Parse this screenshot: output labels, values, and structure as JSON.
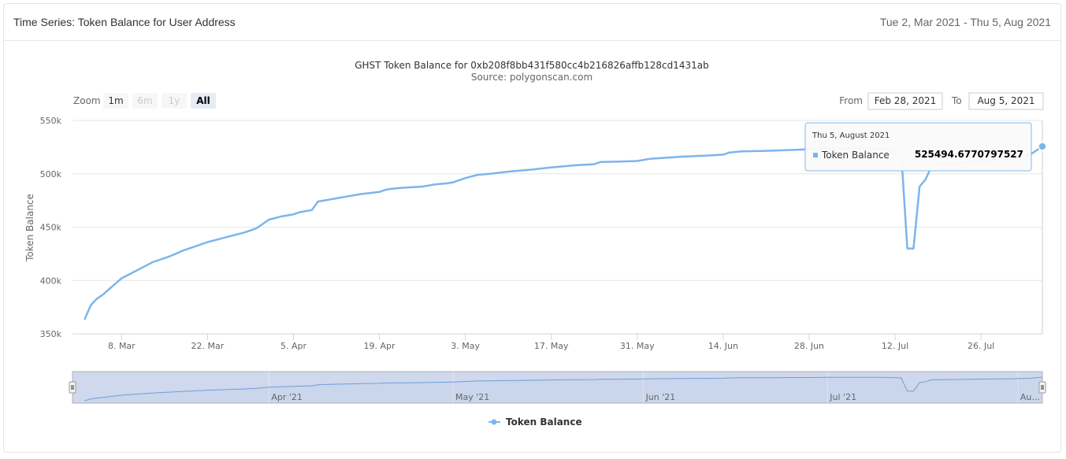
{
  "panel": {
    "title": "Time Series: Token Balance for User Address",
    "date_range": "Tue 2, Mar 2021 - Thu 5, Aug 2021"
  },
  "zoom": {
    "label": "Zoom",
    "buttons": [
      "1m",
      "6m",
      "1y",
      "All"
    ],
    "active": "All",
    "disabled": [
      "6m",
      "1y"
    ]
  },
  "range_inputs": {
    "from_label": "From",
    "from_value": "Feb 28, 2021",
    "to_label": "To",
    "to_value": "Aug 5, 2021"
  },
  "tooltip": {
    "date": "Thu 5, August 2021",
    "series": "Token Balance",
    "value": "525494.6770797527"
  },
  "navigator": {
    "labels": [
      "Apr '21",
      "May '21",
      "Jun '21",
      "Jul '21",
      "Au..."
    ]
  },
  "colors": {
    "series": "#7cb5ec",
    "navigator_mask": "#ccd6eb"
  },
  "chart_data": {
    "type": "line",
    "title": "GHST Token Balance for 0xb208f8bb431f580cc4b216826affb128cd1431ab",
    "subtitle": "Source: polygonscan.com",
    "xlabel": "",
    "ylabel": "Token Balance",
    "x_range": [
      "2021-02-28",
      "2021-08-05"
    ],
    "ylim": [
      350000,
      550000
    ],
    "y_ticks": [
      350000,
      400000,
      450000,
      500000,
      550000
    ],
    "y_tick_labels": [
      "350k",
      "400k",
      "450k",
      "500k",
      "550k"
    ],
    "x_ticks": [
      "2021-03-08",
      "2021-03-22",
      "2021-04-05",
      "2021-04-19",
      "2021-05-03",
      "2021-05-17",
      "2021-05-31",
      "2021-06-14",
      "2021-06-28",
      "2021-07-12",
      "2021-07-26"
    ],
    "x_tick_labels": [
      "8. Mar",
      "22. Mar",
      "5. Apr",
      "19. Apr",
      "3. May",
      "17. May",
      "31. May",
      "14. Jun",
      "28. Jun",
      "12. Jul",
      "26. Jul"
    ],
    "grid": "horizontal",
    "legend": "bottom-center",
    "series": [
      {
        "name": "Token Balance",
        "x": [
          "2021-03-02",
          "2021-03-03",
          "2021-03-04",
          "2021-03-05",
          "2021-03-06",
          "2021-03-07",
          "2021-03-08",
          "2021-03-09",
          "2021-03-10",
          "2021-03-11",
          "2021-03-12",
          "2021-03-13",
          "2021-03-14",
          "2021-03-15",
          "2021-03-16",
          "2021-03-18",
          "2021-03-20",
          "2021-03-22",
          "2021-03-24",
          "2021-03-26",
          "2021-03-28",
          "2021-03-30",
          "2021-04-01",
          "2021-04-03",
          "2021-04-04",
          "2021-04-05",
          "2021-04-06",
          "2021-04-08",
          "2021-04-09",
          "2021-04-10",
          "2021-04-11",
          "2021-04-12",
          "2021-04-14",
          "2021-04-16",
          "2021-04-19",
          "2021-04-20",
          "2021-04-21",
          "2021-04-23",
          "2021-04-26",
          "2021-04-28",
          "2021-04-30",
          "2021-05-01",
          "2021-05-03",
          "2021-05-05",
          "2021-05-07",
          "2021-05-10",
          "2021-05-14",
          "2021-05-17",
          "2021-05-19",
          "2021-05-21",
          "2021-05-24",
          "2021-05-25",
          "2021-05-28",
          "2021-05-31",
          "2021-06-02",
          "2021-06-07",
          "2021-06-11",
          "2021-06-14",
          "2021-06-15",
          "2021-06-17",
          "2021-06-21",
          "2021-06-28",
          "2021-07-01",
          "2021-07-05",
          "2021-07-10",
          "2021-07-13",
          "2021-07-14",
          "2021-07-15",
          "2021-07-16",
          "2021-07-17",
          "2021-07-18",
          "2021-07-21",
          "2021-07-26",
          "2021-07-31",
          "2021-08-03",
          "2021-08-05"
        ],
        "y": [
          364000,
          377000,
          383000,
          387000,
          392000,
          397000,
          402000,
          405000,
          408000,
          411000,
          414000,
          417000,
          419000,
          421000,
          423000,
          428000,
          432000,
          436000,
          439000,
          442000,
          445000,
          449000,
          457000,
          460000,
          461000,
          462000,
          464000,
          466000,
          474000,
          475000,
          476000,
          477000,
          479000,
          481000,
          483000,
          485000,
          486000,
          487000,
          488000,
          490000,
          491000,
          492000,
          496000,
          499000,
          500000,
          502000,
          504000,
          506000,
          507000,
          508000,
          509000,
          511000,
          511500,
          512000,
          514000,
          516000,
          517000,
          518000,
          520000,
          521000,
          521500,
          523000,
          524000,
          524000,
          524000,
          520000,
          430000,
          430000,
          488000,
          495000,
          508000,
          509000,
          512000,
          514000,
          518000,
          525494.68
        ]
      }
    ]
  }
}
